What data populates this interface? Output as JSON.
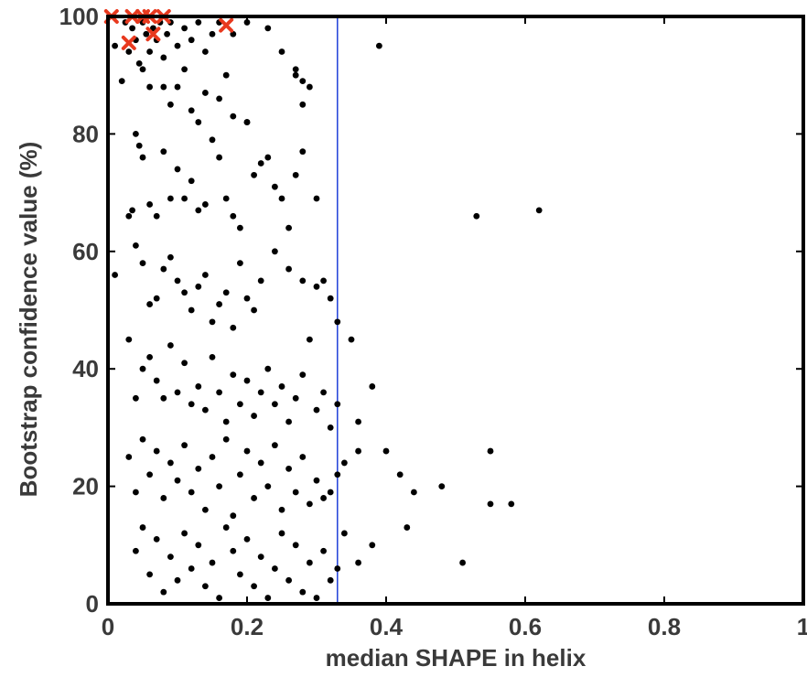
{
  "chart_data": {
    "type": "scatter",
    "title": "",
    "xlabel": "median SHAPE in helix",
    "ylabel": "Bootstrap confidence value (%)",
    "xlim": [
      0,
      1
    ],
    "ylim": [
      0,
      100
    ],
    "xticks": [
      "0",
      "0.2",
      "0.4",
      "0.6",
      "0.8",
      "1"
    ],
    "yticks": [
      "0",
      "20",
      "40",
      "60",
      "80",
      "100"
    ],
    "grid": false,
    "reference_line": {
      "type": "vertical",
      "x": 0.33,
      "color": "#1f3fd8"
    },
    "series": [
      {
        "marker": "dot",
        "color": "#000000",
        "points": [
          [
            0.01,
            95
          ],
          [
            0.02,
            89
          ],
          [
            0.025,
            99
          ],
          [
            0.03,
            94
          ],
          [
            0.035,
            98
          ],
          [
            0.04,
            96
          ],
          [
            0.045,
            92
          ],
          [
            0.05,
            99
          ],
          [
            0.055,
            97
          ],
          [
            0.06,
            94
          ],
          [
            0.065,
            98
          ],
          [
            0.07,
            96
          ],
          [
            0.075,
            99
          ],
          [
            0.08,
            93
          ],
          [
            0.085,
            97
          ],
          [
            0.09,
            99
          ],
          [
            0.1,
            95
          ],
          [
            0.11,
            98
          ],
          [
            0.12,
            96
          ],
          [
            0.13,
            99
          ],
          [
            0.14,
            94
          ],
          [
            0.15,
            97
          ],
          [
            0.16,
            99
          ],
          [
            0.18,
            97
          ],
          [
            0.2,
            99
          ],
          [
            0.23,
            98
          ],
          [
            0.25,
            94
          ],
          [
            0.27,
            91
          ],
          [
            0.28,
            89
          ],
          [
            0.29,
            88
          ],
          [
            0.39,
            95
          ],
          [
            0.05,
            91
          ],
          [
            0.06,
            88
          ],
          [
            0.08,
            88
          ],
          [
            0.09,
            85
          ],
          [
            0.1,
            88
          ],
          [
            0.11,
            91
          ],
          [
            0.12,
            84
          ],
          [
            0.13,
            82
          ],
          [
            0.14,
            87
          ],
          [
            0.16,
            86
          ],
          [
            0.17,
            90
          ],
          [
            0.18,
            83
          ],
          [
            0.2,
            82
          ],
          [
            0.27,
            90
          ],
          [
            0.28,
            85
          ],
          [
            0.01,
            56
          ],
          [
            0.03,
            66
          ],
          [
            0.035,
            67
          ],
          [
            0.04,
            80
          ],
          [
            0.045,
            78
          ],
          [
            0.05,
            76
          ],
          [
            0.06,
            68
          ],
          [
            0.07,
            66
          ],
          [
            0.08,
            77
          ],
          [
            0.09,
            69
          ],
          [
            0.1,
            74
          ],
          [
            0.11,
            69
          ],
          [
            0.12,
            72
          ],
          [
            0.13,
            67
          ],
          [
            0.14,
            68
          ],
          [
            0.15,
            79
          ],
          [
            0.16,
            76
          ],
          [
            0.17,
            69
          ],
          [
            0.18,
            66
          ],
          [
            0.19,
            64
          ],
          [
            0.2,
            82
          ],
          [
            0.21,
            73
          ],
          [
            0.22,
            75
          ],
          [
            0.23,
            76
          ],
          [
            0.24,
            71
          ],
          [
            0.25,
            69
          ],
          [
            0.26,
            64
          ],
          [
            0.27,
            73
          ],
          [
            0.28,
            77
          ],
          [
            0.3,
            69
          ],
          [
            0.04,
            61
          ],
          [
            0.05,
            58
          ],
          [
            0.06,
            51
          ],
          [
            0.07,
            52
          ],
          [
            0.08,
            57
          ],
          [
            0.09,
            59
          ],
          [
            0.1,
            55
          ],
          [
            0.11,
            53
          ],
          [
            0.12,
            50
          ],
          [
            0.13,
            54
          ],
          [
            0.14,
            56
          ],
          [
            0.15,
            48
          ],
          [
            0.16,
            51
          ],
          [
            0.17,
            53
          ],
          [
            0.18,
            47
          ],
          [
            0.19,
            58
          ],
          [
            0.2,
            52
          ],
          [
            0.21,
            50
          ],
          [
            0.22,
            55
          ],
          [
            0.24,
            60
          ],
          [
            0.26,
            57
          ],
          [
            0.28,
            55
          ],
          [
            0.3,
            54
          ],
          [
            0.31,
            55
          ],
          [
            0.32,
            52
          ],
          [
            0.33,
            48
          ],
          [
            0.03,
            45
          ],
          [
            0.04,
            35
          ],
          [
            0.05,
            40
          ],
          [
            0.06,
            42
          ],
          [
            0.07,
            38
          ],
          [
            0.08,
            35
          ],
          [
            0.09,
            44
          ],
          [
            0.1,
            36
          ],
          [
            0.11,
            41
          ],
          [
            0.12,
            34
          ],
          [
            0.13,
            37
          ],
          [
            0.14,
            33
          ],
          [
            0.15,
            42
          ],
          [
            0.16,
            36
          ],
          [
            0.17,
            31
          ],
          [
            0.18,
            39
          ],
          [
            0.19,
            34
          ],
          [
            0.2,
            38
          ],
          [
            0.21,
            32
          ],
          [
            0.22,
            36
          ],
          [
            0.23,
            40
          ],
          [
            0.24,
            34
          ],
          [
            0.25,
            37
          ],
          [
            0.26,
            31
          ],
          [
            0.27,
            35
          ],
          [
            0.28,
            39
          ],
          [
            0.29,
            45
          ],
          [
            0.3,
            33
          ],
          [
            0.31,
            36
          ],
          [
            0.32,
            30
          ],
          [
            0.33,
            34
          ],
          [
            0.35,
            45
          ],
          [
            0.36,
            31
          ],
          [
            0.38,
            37
          ],
          [
            0.03,
            25
          ],
          [
            0.04,
            19
          ],
          [
            0.05,
            28
          ],
          [
            0.06,
            22
          ],
          [
            0.07,
            26
          ],
          [
            0.08,
            18
          ],
          [
            0.09,
            24
          ],
          [
            0.1,
            21
          ],
          [
            0.11,
            27
          ],
          [
            0.12,
            19
          ],
          [
            0.13,
            23
          ],
          [
            0.14,
            16
          ],
          [
            0.15,
            25
          ],
          [
            0.16,
            20
          ],
          [
            0.17,
            28
          ],
          [
            0.18,
            15
          ],
          [
            0.19,
            22
          ],
          [
            0.2,
            26
          ],
          [
            0.21,
            18
          ],
          [
            0.22,
            24
          ],
          [
            0.23,
            20
          ],
          [
            0.24,
            27
          ],
          [
            0.25,
            16
          ],
          [
            0.26,
            23
          ],
          [
            0.27,
            19
          ],
          [
            0.28,
            25
          ],
          [
            0.29,
            17
          ],
          [
            0.3,
            21
          ],
          [
            0.31,
            18
          ],
          [
            0.32,
            19
          ],
          [
            0.33,
            22
          ],
          [
            0.34,
            24
          ],
          [
            0.36,
            26
          ],
          [
            0.4,
            26
          ],
          [
            0.42,
            22
          ],
          [
            0.44,
            19
          ],
          [
            0.48,
            20
          ],
          [
            0.55,
            26
          ],
          [
            0.55,
            17
          ],
          [
            0.58,
            17
          ],
          [
            0.04,
            9
          ],
          [
            0.05,
            13
          ],
          [
            0.06,
            5
          ],
          [
            0.07,
            11
          ],
          [
            0.08,
            2
          ],
          [
            0.09,
            8
          ],
          [
            0.1,
            4
          ],
          [
            0.11,
            12
          ],
          [
            0.12,
            6
          ],
          [
            0.13,
            10
          ],
          [
            0.14,
            3
          ],
          [
            0.15,
            7
          ],
          [
            0.16,
            1
          ],
          [
            0.17,
            13
          ],
          [
            0.18,
            9
          ],
          [
            0.19,
            5
          ],
          [
            0.2,
            11
          ],
          [
            0.21,
            3
          ],
          [
            0.22,
            8
          ],
          [
            0.23,
            1
          ],
          [
            0.24,
            6
          ],
          [
            0.25,
            12
          ],
          [
            0.26,
            4
          ],
          [
            0.27,
            10
          ],
          [
            0.28,
            2
          ],
          [
            0.29,
            7
          ],
          [
            0.3,
            1
          ],
          [
            0.31,
            9
          ],
          [
            0.32,
            4
          ],
          [
            0.33,
            6
          ],
          [
            0.34,
            12
          ],
          [
            0.36,
            7
          ],
          [
            0.38,
            10
          ],
          [
            0.43,
            13
          ],
          [
            0.51,
            7
          ],
          [
            0.53,
            66
          ],
          [
            0.62,
            67
          ]
        ]
      },
      {
        "marker": "x",
        "color": "#e8391e",
        "points": [
          [
            0.005,
            100
          ],
          [
            0.03,
            95.5
          ],
          [
            0.035,
            100
          ],
          [
            0.05,
            100
          ],
          [
            0.06,
            100
          ],
          [
            0.065,
            97
          ],
          [
            0.08,
            100
          ],
          [
            0.17,
            98.5
          ]
        ]
      }
    ]
  }
}
